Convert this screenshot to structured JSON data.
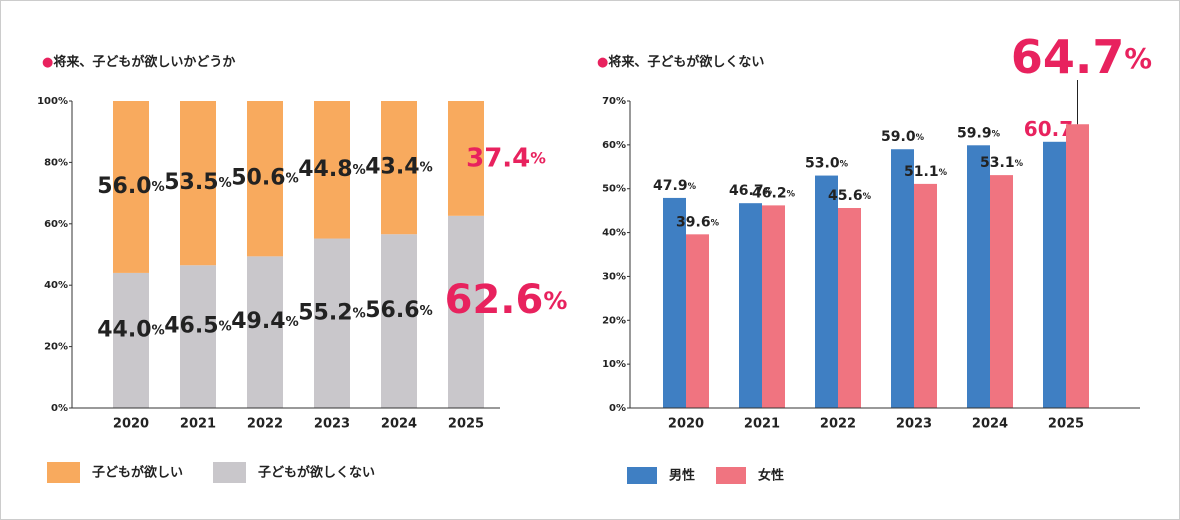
{
  "chart_data": [
    {
      "type": "bar",
      "stacked": true,
      "title": "●将来、子どもが欲しいかどうか",
      "categories": [
        "2020",
        "2021",
        "2022",
        "2023",
        "2024",
        "2025"
      ],
      "series": [
        {
          "name": "子どもが欲しくない",
          "color": "#c9c7cb",
          "values": [
            44.0,
            46.5,
            49.4,
            55.2,
            56.6,
            62.6
          ],
          "value_labels": [
            "44.0%",
            "46.5%",
            "49.4%",
            "55.2%",
            "56.6%",
            "62.6%"
          ]
        },
        {
          "name": "子どもが欲しい",
          "color": "#f8aa5e",
          "values": [
            56.0,
            53.5,
            50.6,
            44.8,
            43.4,
            37.4
          ],
          "value_labels": [
            "56.0%",
            "53.5%",
            "50.6%",
            "44.8%",
            "43.4%",
            "37.4%"
          ]
        }
      ],
      "ylim": [
        0,
        100
      ],
      "yticks": [
        {
          "value": 0,
          "label": "0%"
        },
        {
          "value": 20,
          "label": "20%"
        },
        {
          "value": 40,
          "label": "40%"
        },
        {
          "value": 60,
          "label": "60%"
        },
        {
          "value": 80,
          "label": "80%"
        },
        {
          "value": 100,
          "label": "100%"
        }
      ]
    },
    {
      "type": "bar",
      "stacked": false,
      "title": "●将来、子どもが欲しくない",
      "categories": [
        "2020",
        "2021",
        "2022",
        "2023",
        "2024",
        "2025"
      ],
      "series": [
        {
          "name": "男性",
          "color": "#3f7fc3",
          "values": [
            47.9,
            46.7,
            53.0,
            59.0,
            59.9,
            60.7
          ],
          "value_labels": [
            "47.9%",
            "46.7%",
            "53.0%",
            "59.0%",
            "59.9%",
            "60.7%"
          ]
        },
        {
          "name": "女性",
          "color": "#f07480",
          "values": [
            39.6,
            46.2,
            45.6,
            51.1,
            53.1,
            64.7
          ],
          "value_labels": [
            "39.6%",
            "46.2%",
            "45.6%",
            "51.1%",
            "53.1%",
            "64.7%"
          ]
        }
      ],
      "ylim": [
        0,
        70
      ],
      "yticks": [
        {
          "value": 0,
          "label": "0%"
        },
        {
          "value": 10,
          "label": "10%"
        },
        {
          "value": 20,
          "label": "20%"
        },
        {
          "value": 30,
          "label": "30%"
        },
        {
          "value": 40,
          "label": "40%"
        },
        {
          "value": 50,
          "label": "50%"
        },
        {
          "value": 60,
          "label": "60%"
        },
        {
          "value": 70,
          "label": "70%"
        }
      ]
    }
  ]
}
